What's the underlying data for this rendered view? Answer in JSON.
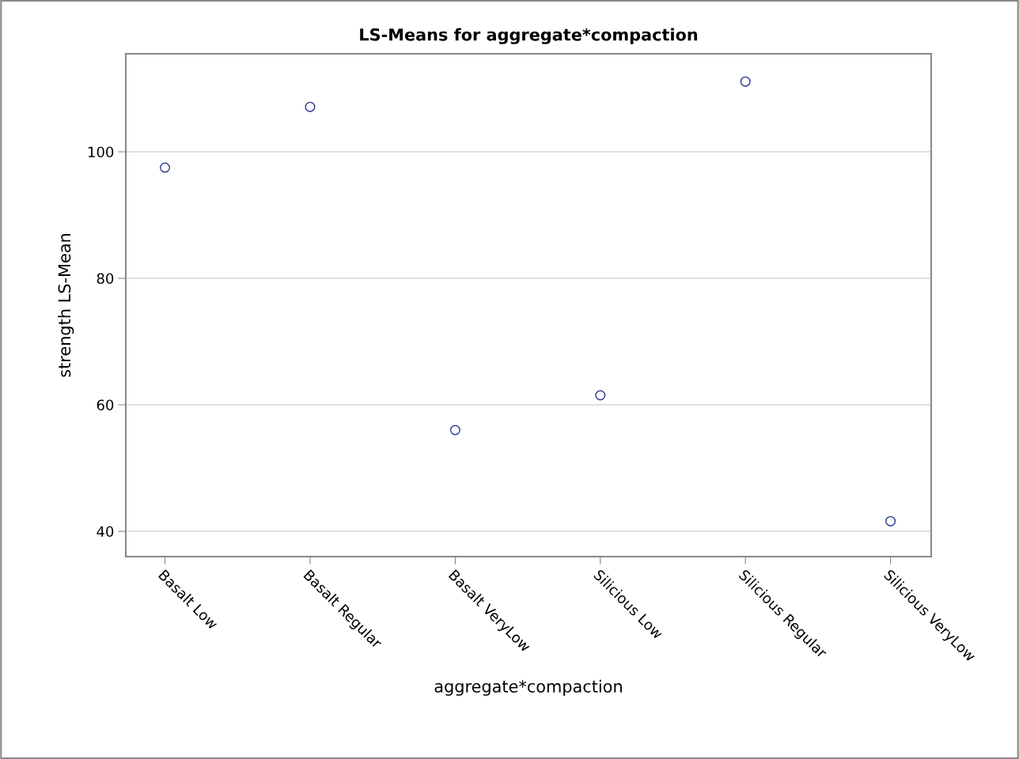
{
  "chart_data": {
    "type": "scatter",
    "title": "LS-Means for aggregate*compaction",
    "xlabel": "aggregate*compaction",
    "ylabel": "strength LS-Mean",
    "categories": [
      "Basalt Low",
      "Basalt Regular",
      "Basalt VeryLow",
      "Silicious Low",
      "Silicious Regular",
      "Silicious VeryLow"
    ],
    "series": [
      {
        "color": "#2b3990",
        "values": [
          97.5,
          107.1,
          56.0,
          61.5,
          111.1,
          41.6
        ]
      }
    ],
    "ylim": [
      36,
      115.5
    ],
    "yticks": [
      40,
      60,
      80,
      100
    ],
    "grid": "y",
    "marker": "circle",
    "legend": false
  }
}
